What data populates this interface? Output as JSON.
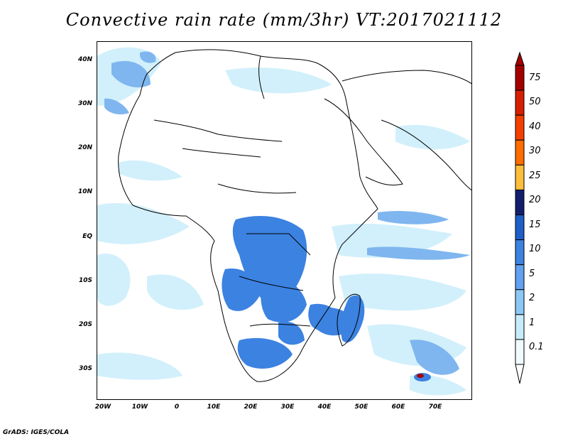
{
  "title": "Convective rain rate (mm/3hr) VT:2017021112",
  "footer": "GrADS: IGES/COLA",
  "map": {
    "y_ticks": [
      "40N",
      "30N",
      "20N",
      "10N",
      "EQ",
      "10S",
      "20S",
      "30S"
    ],
    "x_ticks": [
      "20W",
      "10W",
      "0",
      "10E",
      "20E",
      "30E",
      "40E",
      "50E",
      "60E",
      "70E"
    ],
    "lon_range": [
      -22,
      80
    ],
    "lat_range": [
      -37,
      45
    ]
  },
  "colorbar": {
    "labels": [
      "75",
      "50",
      "40",
      "30",
      "25",
      "20",
      "15",
      "10",
      "5",
      "2",
      "1",
      "0.1"
    ],
    "colors": [
      "#a50000",
      "#d71e00",
      "#f53f00",
      "#ff6c00",
      "#fdbe3c",
      "#141e6e",
      "#1e5fc8",
      "#3c82e1",
      "#64a0f0",
      "#8cc8f5",
      "#c8ebfa",
      "#f0fbff"
    ]
  },
  "colors": {
    "light_rain": "#d2f0fb",
    "moderate_rain": "#7fb6ef",
    "heavy_rain": "#3c82e1",
    "coast": "#000000"
  }
}
